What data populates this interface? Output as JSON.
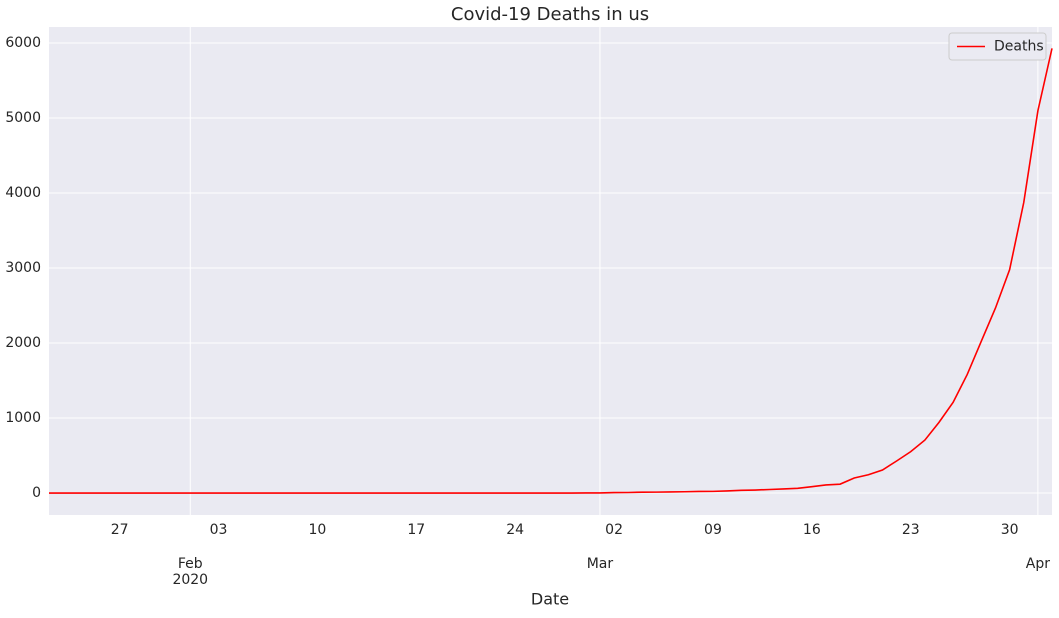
{
  "chart_data": {
    "type": "line",
    "title": "Covid-19 Deaths in us",
    "x_label": "Date",
    "x": [
      "2020-01-22",
      "2020-01-23",
      "2020-01-24",
      "2020-01-25",
      "2020-01-26",
      "2020-01-27",
      "2020-01-28",
      "2020-01-29",
      "2020-01-30",
      "2020-01-31",
      "2020-02-01",
      "2020-02-02",
      "2020-02-03",
      "2020-02-04",
      "2020-02-05",
      "2020-02-06",
      "2020-02-07",
      "2020-02-08",
      "2020-02-09",
      "2020-02-10",
      "2020-02-11",
      "2020-02-12",
      "2020-02-13",
      "2020-02-14",
      "2020-02-15",
      "2020-02-16",
      "2020-02-17",
      "2020-02-18",
      "2020-02-19",
      "2020-02-20",
      "2020-02-21",
      "2020-02-22",
      "2020-02-23",
      "2020-02-24",
      "2020-02-25",
      "2020-02-26",
      "2020-02-27",
      "2020-02-28",
      "2020-02-29",
      "2020-03-01",
      "2020-03-02",
      "2020-03-03",
      "2020-03-04",
      "2020-03-05",
      "2020-03-06",
      "2020-03-07",
      "2020-03-08",
      "2020-03-09",
      "2020-03-10",
      "2020-03-11",
      "2020-03-12",
      "2020-03-13",
      "2020-03-14",
      "2020-03-15",
      "2020-03-16",
      "2020-03-17",
      "2020-03-18",
      "2020-03-19",
      "2020-03-20",
      "2020-03-21",
      "2020-03-22",
      "2020-03-23",
      "2020-03-24",
      "2020-03-25",
      "2020-03-26",
      "2020-03-27",
      "2020-03-28",
      "2020-03-29",
      "2020-03-30",
      "2020-03-31",
      "2020-04-01",
      "2020-04-02"
    ],
    "series": [
      {
        "name": "Deaths",
        "color": "#ff0000",
        "values": [
          0,
          0,
          0,
          0,
          0,
          0,
          0,
          0,
          0,
          0,
          0,
          0,
          0,
          0,
          0,
          0,
          0,
          0,
          0,
          0,
          0,
          0,
          0,
          0,
          0,
          0,
          0,
          0,
          0,
          0,
          0,
          0,
          0,
          0,
          0,
          0,
          0,
          0,
          1,
          1,
          6,
          7,
          11,
          12,
          14,
          17,
          21,
          22,
          28,
          36,
          40,
          47,
          54,
          63,
          85,
          108,
          118,
          200,
          244,
          307,
          427,
          552,
          706,
          942,
          1209,
          1581,
          2026,
          2467,
          2978,
          3873,
          5095,
          5928
        ]
      }
    ],
    "xlim": [
      "2020-01-22",
      "2020-04-02"
    ],
    "xticks": [
      {
        "value": "2020-01-27",
        "label": "27"
      },
      {
        "value": "2020-02-03",
        "label": "03"
      },
      {
        "value": "2020-02-10",
        "label": "10"
      },
      {
        "value": "2020-02-17",
        "label": "17"
      },
      {
        "value": "2020-02-24",
        "label": "24"
      },
      {
        "value": "2020-03-02",
        "label": "02"
      },
      {
        "value": "2020-03-09",
        "label": "09"
      },
      {
        "value": "2020-03-16",
        "label": "16"
      },
      {
        "value": "2020-03-23",
        "label": "23"
      },
      {
        "value": "2020-03-30",
        "label": "30"
      }
    ],
    "xticks_major": [
      {
        "value": "2020-02-01",
        "label": "Feb",
        "year": "2020"
      },
      {
        "value": "2020-03-01",
        "label": "Mar"
      },
      {
        "value": "2020-04-01",
        "label": "Apr"
      }
    ],
    "ylim": [
      -293,
      6213
    ],
    "yticks": [
      0,
      1000,
      2000,
      3000,
      4000,
      5000,
      6000
    ],
    "grid": true,
    "legend": "upper right"
  }
}
